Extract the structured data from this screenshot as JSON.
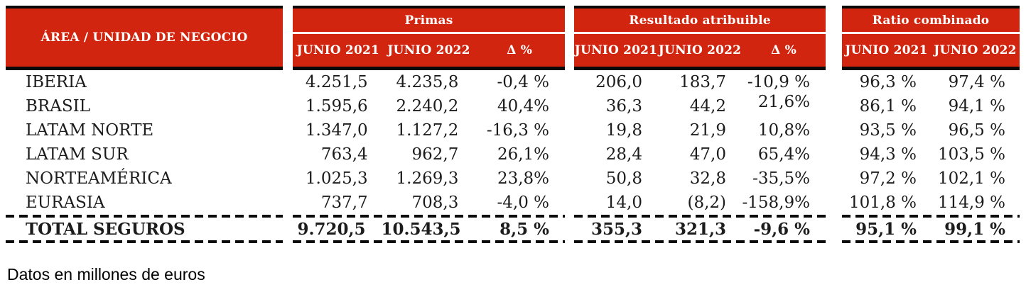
{
  "footnote": "Datos en millones de euros",
  "colors": {
    "header_red": "#D2250F",
    "header_text": "#FFFFFF",
    "border_black": "#0A0A0A",
    "body_text": "#1C1C1C"
  },
  "table": {
    "area_header": "ÁREA / UNIDAD DE NEGOCIO",
    "sections": [
      {
        "title": "Primas",
        "columns": [
          "JUNIO 2021",
          "JUNIO 2022",
          "Δ %"
        ]
      },
      {
        "title": "Resultado atribuible",
        "columns": [
          "JUNIO 2021",
          "JUNIO 2022",
          "Δ %"
        ]
      },
      {
        "title": "Ratio combinado",
        "columns": [
          "JUNIO 2021",
          "JUNIO 2022"
        ]
      }
    ],
    "rows": [
      {
        "area": "IBERIA",
        "primas": [
          "4.251,5",
          "4.235,8",
          "-0,4 %"
        ],
        "resultado": [
          "206,0",
          "183,7",
          "-10,9 %"
        ],
        "ratio": [
          "96,3 %",
          "97,4 %"
        ]
      },
      {
        "area": "BRASIL",
        "primas": [
          "1.595,6",
          "2.240,2",
          "40,4%"
        ],
        "resultado": [
          "36,3",
          "44,2",
          "21,6%"
        ],
        "ratio": [
          "86,1 %",
          "94,1 %"
        ]
      },
      {
        "area": "LATAM NORTE",
        "primas": [
          "1.347,0",
          "1.127,2",
          "-16,3 %"
        ],
        "resultado": [
          "19,8",
          "21,9",
          "10,8%"
        ],
        "ratio": [
          "93,5 %",
          "96,5 %"
        ]
      },
      {
        "area": "LATAM SUR",
        "primas": [
          "763,4",
          "962,7",
          "26,1%"
        ],
        "resultado": [
          "28,4",
          "47,0",
          "65,4%"
        ],
        "ratio": [
          "94,3 %",
          "103,5 %"
        ]
      },
      {
        "area": "NORTEAMÉRICA",
        "primas": [
          "1.025,3",
          "1.269,3",
          "23,8%"
        ],
        "resultado": [
          "50,8",
          "32,8",
          "-35,5%"
        ],
        "ratio": [
          "97,2 %",
          "102,1 %"
        ]
      },
      {
        "area": "EURASIA",
        "primas": [
          "737,7",
          "708,3",
          "-4,0 %"
        ],
        "resultado": [
          "14,0",
          "(8,2)",
          "-158,9%"
        ],
        "ratio": [
          "101,8 %",
          "114,9 %"
        ]
      }
    ],
    "total": {
      "area": "TOTAL SEGUROS",
      "primas": [
        "9.720,5",
        "10.543,5",
        "8,5 %"
      ],
      "resultado": [
        "355,3",
        "321,3",
        "-9,6 %"
      ],
      "ratio": [
        "95,1 %",
        "99,1 %"
      ]
    }
  }
}
